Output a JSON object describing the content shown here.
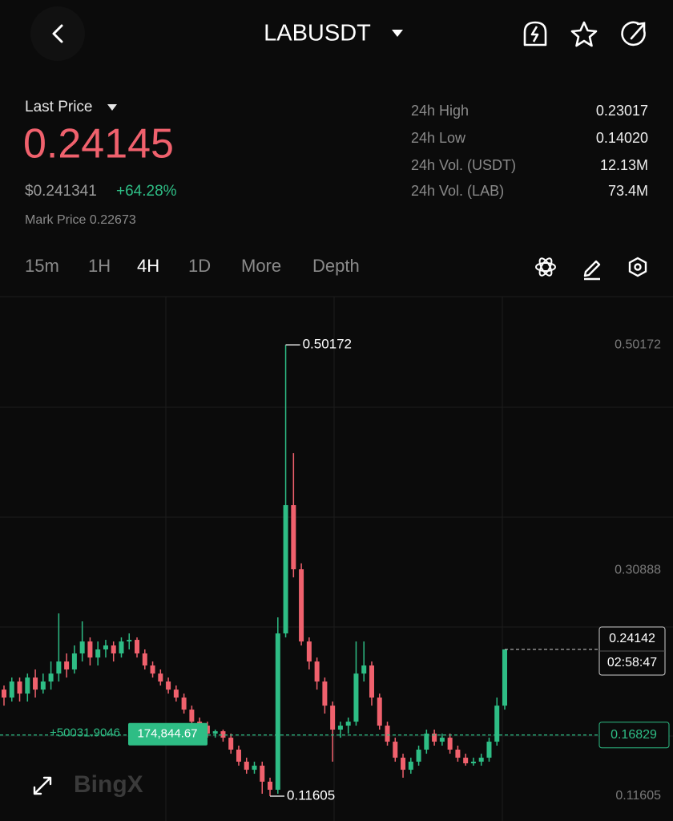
{
  "header": {
    "symbol": "LABUSDT"
  },
  "price_panel": {
    "last_price_label": "Last Price",
    "last_price": "0.24145",
    "usd_price": "$0.241341",
    "change": "+64.28%",
    "mark_price": "Mark Price 0.22673"
  },
  "stats": [
    {
      "label": "24h High",
      "value": "0.23017"
    },
    {
      "label": "24h Low",
      "value": "0.14020"
    },
    {
      "label": "24h Vol. (USDT)",
      "value": "12.13M"
    },
    {
      "label": "24h Vol. (LAB)",
      "value": "73.4M"
    }
  ],
  "timeframes": [
    "15m",
    "1H",
    "4H",
    "1D",
    "More",
    "Depth"
  ],
  "selected_timeframe": "4H",
  "chart_data": {
    "type": "candlestick",
    "open": [
      0.2071,
      0.2003,
      0.214,
      0.2037,
      0.2174,
      0.2071,
      0.214,
      0.2208,
      0.2311,
      0.2243,
      0.238,
      0.2482,
      0.2345,
      0.2414,
      0.2448,
      0.238,
      0.2482,
      0.2496,
      0.238,
      0.2277,
      0.2208,
      0.214,
      0.2071,
      0.2003,
      0.19,
      0.1797,
      0.1763,
      0.1695,
      0.1715,
      0.166,
      0.1558,
      0.1455,
      0.1386,
      0.1421,
      0.1284,
      0.1215,
      0.2551,
      0.3647,
      0.3099,
      0.2482,
      0.2311,
      0.214,
      0.1934,
      0.1729,
      0.1763,
      0.1797,
      0.2208,
      0.2277,
      0.2003,
      0.1763,
      0.1626,
      0.1489,
      0.1386,
      0.1455,
      0.1558,
      0.1695,
      0.1626,
      0.166,
      0.1558,
      0.1489,
      0.1441,
      0.1455,
      0.1489,
      0.1626,
      0.1934
    ],
    "high": [
      0.2106,
      0.2174,
      0.2174,
      0.2208,
      0.2243,
      0.2208,
      0.2311,
      0.2722,
      0.238,
      0.2448,
      0.2654,
      0.2517,
      0.2482,
      0.2496,
      0.2482,
      0.2517,
      0.2551,
      0.2517,
      0.2414,
      0.2311,
      0.2243,
      0.2174,
      0.2106,
      0.2037,
      0.1934,
      0.1832,
      0.1797,
      0.1729,
      0.1729,
      0.1695,
      0.1592,
      0.1489,
      0.1455,
      0.1455,
      0.1318,
      0.2688,
      0.50172,
      0.4092,
      0.315,
      0.2517,
      0.2345,
      0.2174,
      0.1969,
      0.1797,
      0.1832,
      0.2482,
      0.2482,
      0.2311,
      0.2037,
      0.1797,
      0.166,
      0.1523,
      0.1489,
      0.1592,
      0.1729,
      0.1729,
      0.1695,
      0.1695,
      0.1592,
      0.1523,
      0.1489,
      0.1523,
      0.166,
      0.2003,
      0.24142
    ],
    "low": [
      0.1934,
      0.1969,
      0.1969,
      0.1969,
      0.2003,
      0.2037,
      0.2071,
      0.214,
      0.2174,
      0.2208,
      0.2311,
      0.2277,
      0.2277,
      0.2345,
      0.2311,
      0.2345,
      0.2414,
      0.2345,
      0.2243,
      0.2174,
      0.2106,
      0.2037,
      0.1969,
      0.1866,
      0.1763,
      0.1729,
      0.166,
      0.166,
      0.1626,
      0.1523,
      0.1421,
      0.1352,
      0.1352,
      0.1181,
      0.11605,
      0.1181,
      0.2517,
      0.303,
      0.2448,
      0.2243,
      0.2071,
      0.1866,
      0.1455,
      0.166,
      0.1695,
      0.1763,
      0.214,
      0.1934,
      0.1729,
      0.1592,
      0.1455,
      0.1318,
      0.1352,
      0.1421,
      0.1523,
      0.1592,
      0.1592,
      0.1523,
      0.1455,
      0.1421,
      0.1421,
      0.1421,
      0.1455,
      0.1592,
      0.19
    ],
    "close": [
      0.2003,
      0.214,
      0.2037,
      0.2174,
      0.2071,
      0.214,
      0.2208,
      0.2311,
      0.2243,
      0.238,
      0.2482,
      0.2345,
      0.2414,
      0.2448,
      0.238,
      0.2482,
      0.2496,
      0.238,
      0.2277,
      0.2208,
      0.214,
      0.2071,
      0.2003,
      0.19,
      0.1797,
      0.1763,
      0.1695,
      0.1715,
      0.166,
      0.1558,
      0.1455,
      0.1386,
      0.1421,
      0.1284,
      0.1215,
      0.2551,
      0.3647,
      0.3099,
      0.2482,
      0.2311,
      0.214,
      0.1934,
      0.1729,
      0.1763,
      0.1797,
      0.2208,
      0.2277,
      0.2003,
      0.1763,
      0.1626,
      0.1489,
      0.1386,
      0.1455,
      0.1558,
      0.1695,
      0.1626,
      0.166,
      0.1558,
      0.1489,
      0.1441,
      0.1455,
      0.1489,
      0.1626,
      0.1934,
      0.24142
    ],
    "up_color": "#2ebd85",
    "down_color": "#f0616d",
    "ylim": [
      0.0948,
      0.5415
    ],
    "yticks": [
      0.11605,
      0.30888,
      0.50172
    ],
    "reference_line": 0.16829,
    "countdown": "02:58:47",
    "drawing_labels": [
      "+50031.9046",
      "174,844.67"
    ],
    "watermark": "BingX"
  }
}
